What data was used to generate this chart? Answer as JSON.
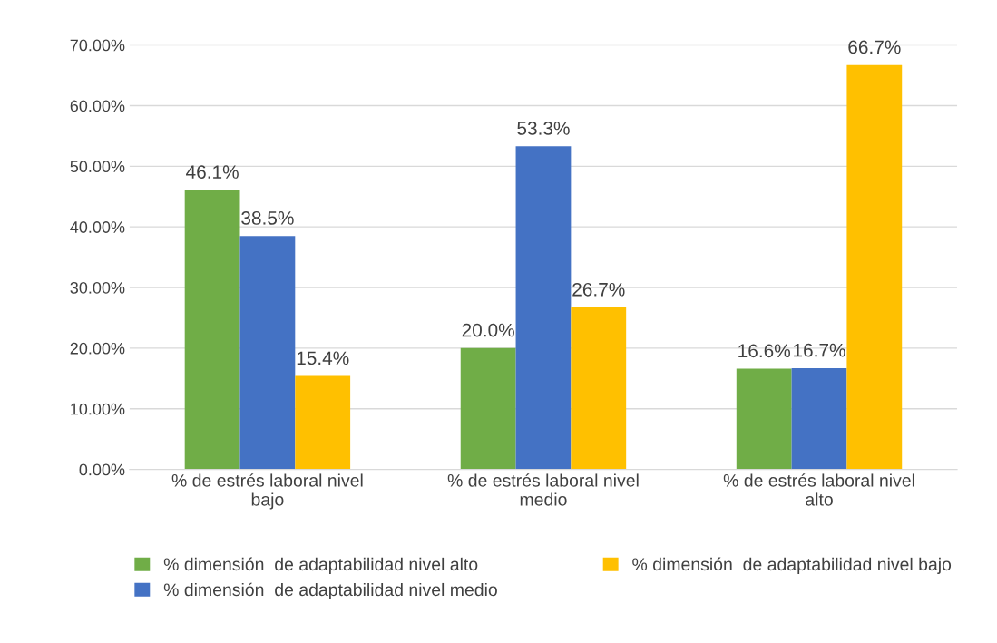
{
  "chart_data": {
    "type": "bar",
    "categories": [
      "% de estrés laboral nivel\nbajo",
      "% de estrés laboral nivel\nmedio",
      "% de estrés laboral nivel\nalto"
    ],
    "series": [
      {
        "name": "% dimensión  de adaptabilidad nivel alto",
        "color": "#70ad47",
        "values": [
          46.1,
          20.0,
          16.6
        ],
        "value_labels": [
          "46.1%",
          "20.0%",
          "16.6%"
        ]
      },
      {
        "name": "% dimensión  de adaptabilidad nivel medio",
        "color": "#4472c4",
        "values": [
          38.5,
          53.3,
          16.7
        ],
        "value_labels": [
          "38.5%",
          "53.3%",
          "16.7%"
        ]
      },
      {
        "name": "% dimensión  de adaptabilidad nivel bajo",
        "color": "#ffc000",
        "values": [
          15.4,
          26.7,
          66.7
        ],
        "value_labels": [
          "15.4%",
          "26.7%",
          "66.7%"
        ]
      }
    ],
    "ylim": [
      0,
      70
    ],
    "yticks": [
      {
        "value": 0,
        "label": "0.00%"
      },
      {
        "value": 10,
        "label": "10.00%"
      },
      {
        "value": 20,
        "label": "20.00%"
      },
      {
        "value": 30,
        "label": "30.00%"
      },
      {
        "value": 40,
        "label": "40.00%"
      },
      {
        "value": 50,
        "label": "50.00%"
      },
      {
        "value": 60,
        "label": "60.00%"
      },
      {
        "value": 70,
        "label": "70.00%"
      }
    ],
    "grid": "y",
    "legend": "bottom"
  }
}
